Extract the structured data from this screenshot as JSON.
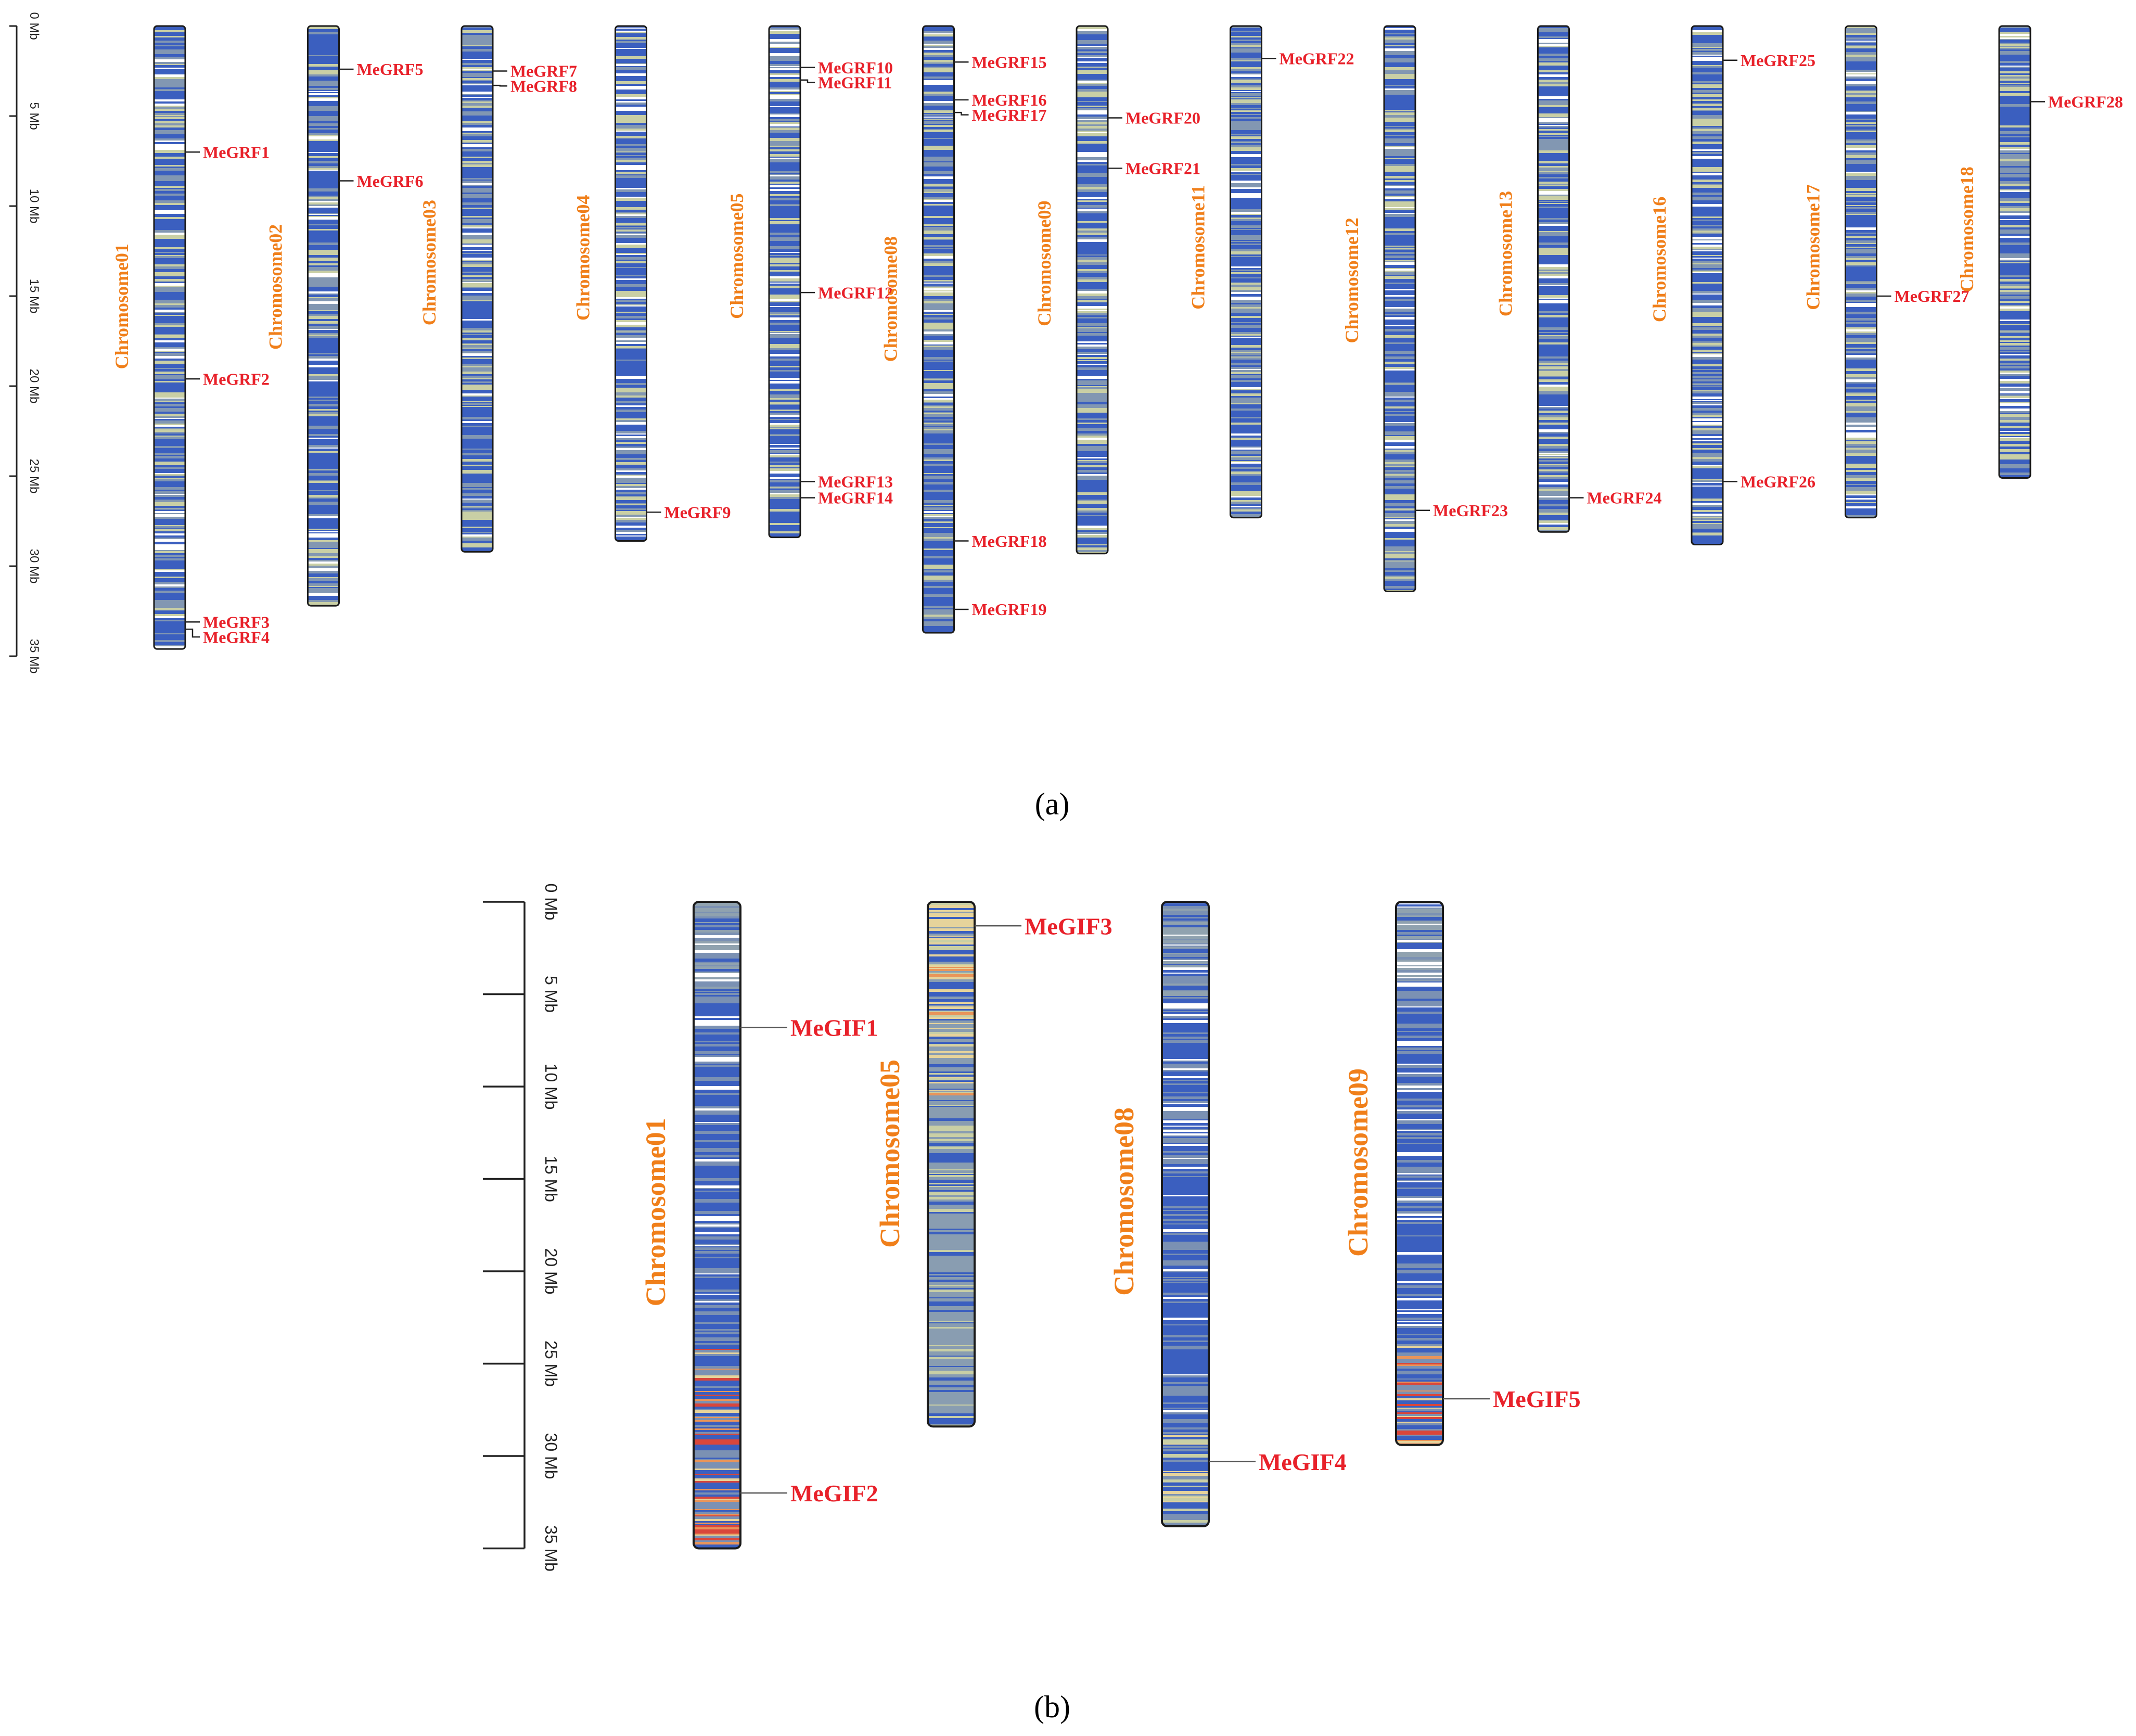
{
  "colors": {
    "density_low": "#3b5fbf",
    "density_mid": "#c9cfa5",
    "density_high": "#d9463b",
    "gene_label": "#e8212a",
    "chrom_label": "#f07f1a",
    "axis": "#222222"
  },
  "panel_a": {
    "caption": "(a)",
    "axis_ticks": [
      "0 Mb",
      "5 Mb",
      "10 Mb",
      "15 Mb",
      "20 Mb",
      "25 Mb",
      "30 Mb",
      "35 Mb"
    ],
    "tick_values_mb": [
      0,
      5,
      10,
      15,
      20,
      25,
      30,
      35
    ],
    "chromosomes": [
      {
        "name": "Chromosome01",
        "length_mb": 34.6,
        "palette": "blue",
        "genes": [
          {
            "name": "MeGRF1",
            "pos_mb": 7.0
          },
          {
            "name": "MeGRF2",
            "pos_mb": 19.6
          },
          {
            "name": "MeGRF3",
            "pos_mb": 33.1
          },
          {
            "name": "MeGRF4",
            "pos_mb": 33.5
          }
        ]
      },
      {
        "name": "Chromosome02",
        "length_mb": 32.2,
        "palette": "blue",
        "genes": [
          {
            "name": "MeGRF5",
            "pos_mb": 2.4
          },
          {
            "name": "MeGRF6",
            "pos_mb": 8.6
          }
        ]
      },
      {
        "name": "Chromosome03",
        "length_mb": 29.2,
        "palette": "blue",
        "genes": [
          {
            "name": "MeGRF7",
            "pos_mb": 2.5
          },
          {
            "name": "MeGRF8",
            "pos_mb": 3.3
          }
        ]
      },
      {
        "name": "Chromosome04",
        "length_mb": 28.6,
        "palette": "blue",
        "genes": [
          {
            "name": "MeGRF9",
            "pos_mb": 27.0
          }
        ]
      },
      {
        "name": "Chromosome05",
        "length_mb": 28.4,
        "palette": "blue",
        "genes": [
          {
            "name": "MeGRF10",
            "pos_mb": 2.3
          },
          {
            "name": "MeGRF11",
            "pos_mb": 3.0
          },
          {
            "name": "MeGRF12",
            "pos_mb": 14.8
          },
          {
            "name": "MeGRF13",
            "pos_mb": 25.3
          },
          {
            "name": "MeGRF14",
            "pos_mb": 26.2
          }
        ]
      },
      {
        "name": "Chromosome08",
        "length_mb": 33.7,
        "palette": "blue",
        "genes": [
          {
            "name": "MeGRF15",
            "pos_mb": 2.0
          },
          {
            "name": "MeGRF16",
            "pos_mb": 4.1
          },
          {
            "name": "MeGRF17",
            "pos_mb": 4.8
          },
          {
            "name": "MeGRF18",
            "pos_mb": 28.6
          },
          {
            "name": "MeGRF19",
            "pos_mb": 32.4
          }
        ]
      },
      {
        "name": "Chromosome09",
        "length_mb": 29.3,
        "palette": "blue",
        "genes": [
          {
            "name": "MeGRF20",
            "pos_mb": 5.1
          },
          {
            "name": "MeGRF21",
            "pos_mb": 7.9
          }
        ]
      },
      {
        "name": "Chromosome11",
        "length_mb": 27.3,
        "palette": "blue",
        "genes": [
          {
            "name": "MeGRF22",
            "pos_mb": 1.8
          }
        ]
      },
      {
        "name": "Chromosome12",
        "length_mb": 31.4,
        "palette": "blue",
        "genes": [
          {
            "name": "MeGRF23",
            "pos_mb": 26.9
          }
        ]
      },
      {
        "name": "Chromosome13",
        "length_mb": 28.1,
        "palette": "blue",
        "genes": [
          {
            "name": "MeGRF24",
            "pos_mb": 26.2
          }
        ]
      },
      {
        "name": "Chromosome16",
        "length_mb": 28.8,
        "palette": "blue",
        "genes": [
          {
            "name": "MeGRF25",
            "pos_mb": 1.9
          },
          {
            "name": "MeGRF26",
            "pos_mb": 25.3
          }
        ]
      },
      {
        "name": "Chromosome17",
        "length_mb": 27.3,
        "palette": "blue",
        "genes": [
          {
            "name": "MeGRF27",
            "pos_mb": 15.0
          }
        ]
      },
      {
        "name": "Chromosome18",
        "length_mb": 25.1,
        "palette": "blue",
        "genes": [
          {
            "name": "MeGRF28",
            "pos_mb": 4.2
          }
        ]
      }
    ]
  },
  "panel_b": {
    "caption": "(b)",
    "axis_ticks": [
      "0 Mb",
      "5 Mb",
      "10 Mb",
      "15 Mb",
      "20 Mb",
      "25 Mb",
      "30 Mb",
      "35 Mb"
    ],
    "tick_values_mb": [
      0,
      5,
      10,
      15,
      20,
      25,
      30,
      35
    ],
    "chromosomes": [
      {
        "name": "Chromosome01",
        "length_mb": 35.0,
        "palette": "mixed_red_bottom",
        "genes": [
          {
            "name": "MeGIF1",
            "pos_mb": 6.8
          },
          {
            "name": "MeGIF2",
            "pos_mb": 32.0
          }
        ]
      },
      {
        "name": "Chromosome05",
        "length_mb": 28.4,
        "palette": "warm_top",
        "genes": [
          {
            "name": "MeGIF3",
            "pos_mb": 1.3
          }
        ]
      },
      {
        "name": "Chromosome08",
        "length_mb": 33.8,
        "palette": "blue_warm_bottom",
        "genes": [
          {
            "name": "MeGIF4",
            "pos_mb": 30.3
          }
        ]
      },
      {
        "name": "Chromosome09",
        "length_mb": 29.4,
        "palette": "blue_red_bottom",
        "genes": [
          {
            "name": "MeGIF5",
            "pos_mb": 26.9
          }
        ]
      }
    ]
  }
}
